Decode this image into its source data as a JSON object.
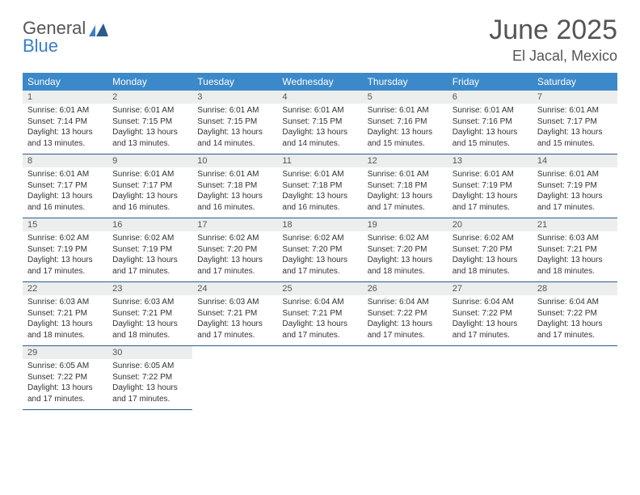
{
  "brand": {
    "text1": "General",
    "text2": "Blue",
    "gray_color": "#6a6a6a",
    "blue_color": "#3b7fc4"
  },
  "header": {
    "title": "June 2025",
    "location": "El Jacal, Mexico"
  },
  "colors": {
    "header_row_bg": "#3b89c9",
    "header_row_text": "#ffffff",
    "daynum_bg": "#eceded",
    "border": "#2a5b8a",
    "text": "#333333"
  },
  "weekdays": [
    "Sunday",
    "Monday",
    "Tuesday",
    "Wednesday",
    "Thursday",
    "Friday",
    "Saturday"
  ],
  "weeks": [
    [
      {
        "n": "1",
        "sr": "6:01 AM",
        "ss": "7:14 PM",
        "dl": "13 hours and 13 minutes."
      },
      {
        "n": "2",
        "sr": "6:01 AM",
        "ss": "7:15 PM",
        "dl": "13 hours and 13 minutes."
      },
      {
        "n": "3",
        "sr": "6:01 AM",
        "ss": "7:15 PM",
        "dl": "13 hours and 14 minutes."
      },
      {
        "n": "4",
        "sr": "6:01 AM",
        "ss": "7:15 PM",
        "dl": "13 hours and 14 minutes."
      },
      {
        "n": "5",
        "sr": "6:01 AM",
        "ss": "7:16 PM",
        "dl": "13 hours and 15 minutes."
      },
      {
        "n": "6",
        "sr": "6:01 AM",
        "ss": "7:16 PM",
        "dl": "13 hours and 15 minutes."
      },
      {
        "n": "7",
        "sr": "6:01 AM",
        "ss": "7:17 PM",
        "dl": "13 hours and 15 minutes."
      }
    ],
    [
      {
        "n": "8",
        "sr": "6:01 AM",
        "ss": "7:17 PM",
        "dl": "13 hours and 16 minutes."
      },
      {
        "n": "9",
        "sr": "6:01 AM",
        "ss": "7:17 PM",
        "dl": "13 hours and 16 minutes."
      },
      {
        "n": "10",
        "sr": "6:01 AM",
        "ss": "7:18 PM",
        "dl": "13 hours and 16 minutes."
      },
      {
        "n": "11",
        "sr": "6:01 AM",
        "ss": "7:18 PM",
        "dl": "13 hours and 16 minutes."
      },
      {
        "n": "12",
        "sr": "6:01 AM",
        "ss": "7:18 PM",
        "dl": "13 hours and 17 minutes."
      },
      {
        "n": "13",
        "sr": "6:01 AM",
        "ss": "7:19 PM",
        "dl": "13 hours and 17 minutes."
      },
      {
        "n": "14",
        "sr": "6:01 AM",
        "ss": "7:19 PM",
        "dl": "13 hours and 17 minutes."
      }
    ],
    [
      {
        "n": "15",
        "sr": "6:02 AM",
        "ss": "7:19 PM",
        "dl": "13 hours and 17 minutes."
      },
      {
        "n": "16",
        "sr": "6:02 AM",
        "ss": "7:19 PM",
        "dl": "13 hours and 17 minutes."
      },
      {
        "n": "17",
        "sr": "6:02 AM",
        "ss": "7:20 PM",
        "dl": "13 hours and 17 minutes."
      },
      {
        "n": "18",
        "sr": "6:02 AM",
        "ss": "7:20 PM",
        "dl": "13 hours and 17 minutes."
      },
      {
        "n": "19",
        "sr": "6:02 AM",
        "ss": "7:20 PM",
        "dl": "13 hours and 18 minutes."
      },
      {
        "n": "20",
        "sr": "6:02 AM",
        "ss": "7:20 PM",
        "dl": "13 hours and 18 minutes."
      },
      {
        "n": "21",
        "sr": "6:03 AM",
        "ss": "7:21 PM",
        "dl": "13 hours and 18 minutes."
      }
    ],
    [
      {
        "n": "22",
        "sr": "6:03 AM",
        "ss": "7:21 PM",
        "dl": "13 hours and 18 minutes."
      },
      {
        "n": "23",
        "sr": "6:03 AM",
        "ss": "7:21 PM",
        "dl": "13 hours and 18 minutes."
      },
      {
        "n": "24",
        "sr": "6:03 AM",
        "ss": "7:21 PM",
        "dl": "13 hours and 17 minutes."
      },
      {
        "n": "25",
        "sr": "6:04 AM",
        "ss": "7:21 PM",
        "dl": "13 hours and 17 minutes."
      },
      {
        "n": "26",
        "sr": "6:04 AM",
        "ss": "7:22 PM",
        "dl": "13 hours and 17 minutes."
      },
      {
        "n": "27",
        "sr": "6:04 AM",
        "ss": "7:22 PM",
        "dl": "13 hours and 17 minutes."
      },
      {
        "n": "28",
        "sr": "6:04 AM",
        "ss": "7:22 PM",
        "dl": "13 hours and 17 minutes."
      }
    ],
    [
      {
        "n": "29",
        "sr": "6:05 AM",
        "ss": "7:22 PM",
        "dl": "13 hours and 17 minutes."
      },
      {
        "n": "30",
        "sr": "6:05 AM",
        "ss": "7:22 PM",
        "dl": "13 hours and 17 minutes."
      },
      null,
      null,
      null,
      null,
      null
    ]
  ],
  "labels": {
    "sunrise": "Sunrise: ",
    "sunset": "Sunset: ",
    "daylight": "Daylight: "
  }
}
